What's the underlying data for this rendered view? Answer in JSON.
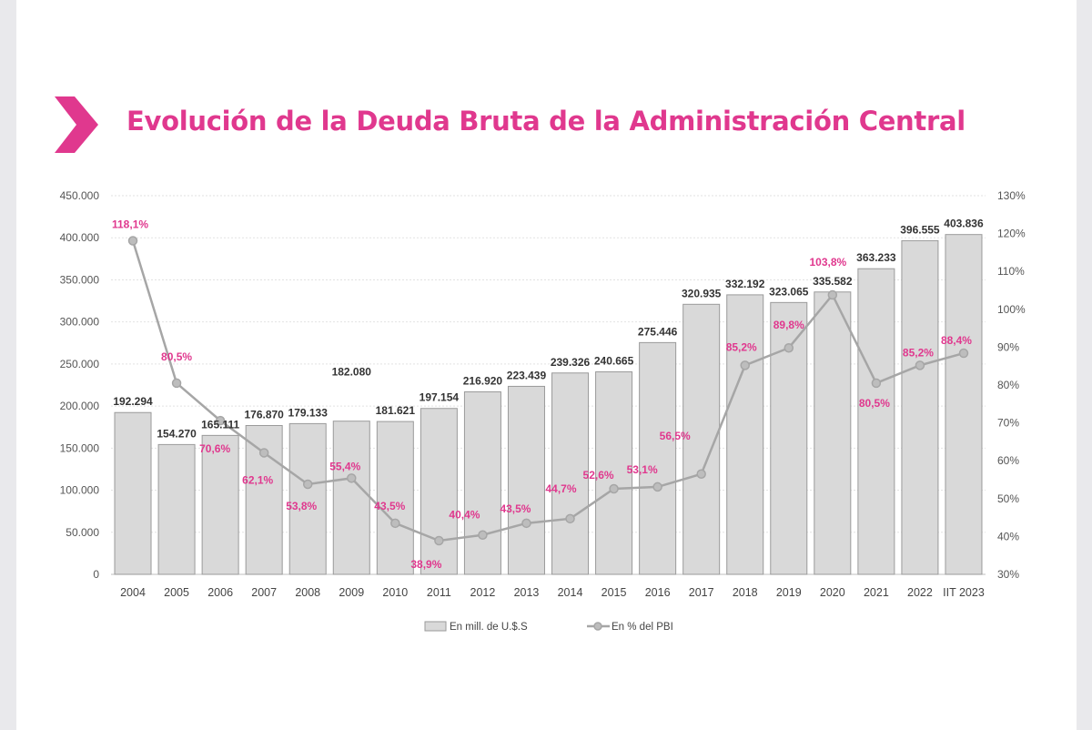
{
  "title": "Evolución de la Deuda Bruta de la Administración Central",
  "colors": {
    "accent": "#e0388e",
    "bar": "#d9d9d9",
    "line": "#a6a6a6"
  },
  "chart_data": {
    "type": "bar+line",
    "title": "Evolución de la Deuda Bruta de la Administración Central",
    "categories": [
      "2004",
      "2005",
      "2006",
      "2007",
      "2008",
      "2009",
      "2010",
      "2011",
      "2012",
      "2013",
      "2014",
      "2015",
      "2016",
      "2017",
      "2018",
      "2019",
      "2020",
      "2021",
      "2022",
      "IIT 2023"
    ],
    "series": [
      {
        "name": "En mill. de U.$.S",
        "type": "bar",
        "axis": "left",
        "values": [
          192294,
          154270,
          165111,
          176870,
          179133,
          182080,
          181621,
          197154,
          216920,
          223439,
          239326,
          240665,
          275446,
          320935,
          332192,
          323065,
          335582,
          363233,
          396555,
          403836
        ],
        "labels": [
          "192.294",
          "154.270",
          "165.111",
          "176.870",
          "179.133",
          "182.080",
          "181.621",
          "197.154",
          "216.920",
          "223.439",
          "239.326",
          "240.665",
          "275.446",
          "320.935",
          "332.192",
          "323.065",
          "335.582",
          "363.233",
          "396.555",
          "403.836"
        ]
      },
      {
        "name": "En % del PBI",
        "type": "line",
        "axis": "right",
        "values": [
          118.1,
          80.5,
          70.6,
          62.1,
          53.8,
          55.4,
          43.5,
          38.9,
          40.4,
          43.5,
          44.7,
          52.6,
          53.1,
          56.5,
          85.2,
          89.8,
          103.8,
          80.5,
          85.2,
          88.4
        ],
        "labels": [
          "118,1%",
          "80,5%",
          "70,6%",
          "62,1%",
          "53,8%",
          "55,4%",
          "43,5%",
          "38,9%",
          "40,4%",
          "43,5%",
          "44,7%",
          "52,6%",
          "53,1%",
          "56,5%",
          "85,2%",
          "89,8%",
          "103,8%",
          "80,5%",
          "85,2%",
          "88,4%"
        ]
      }
    ],
    "y_left": {
      "range": [
        0,
        450000
      ],
      "ticks": [
        "0",
        "50.000",
        "100.000",
        "150.000",
        "200.000",
        "250.000",
        "300.000",
        "350.000",
        "400.000",
        "450.000"
      ]
    },
    "y_right": {
      "range": [
        30,
        130
      ],
      "ticks": [
        "30%",
        "40%",
        "50%",
        "60%",
        "70%",
        "80%",
        "90%",
        "100%",
        "110%",
        "120%",
        "130%"
      ]
    },
    "grid": true,
    "legend_position": "bottom"
  }
}
